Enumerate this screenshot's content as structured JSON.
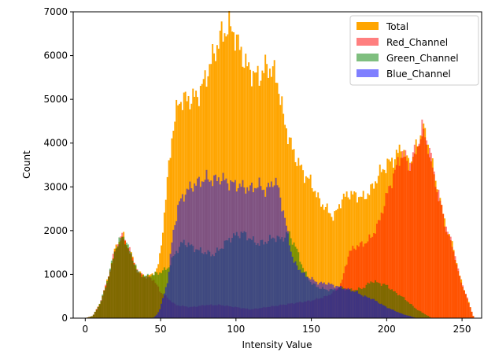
{
  "chart_data": {
    "type": "bar",
    "title": "",
    "xlabel": "Intensity Value",
    "ylabel": "Count",
    "xlim": [
      -8,
      263
    ],
    "ylim": [
      0,
      7000
    ],
    "x_ticks": [
      0,
      50,
      100,
      150,
      200,
      250
    ],
    "y_ticks": [
      0,
      1000,
      2000,
      3000,
      4000,
      5000,
      6000,
      7000
    ],
    "grid": false,
    "legend_position": "top-right",
    "bin_width": 1,
    "series": [
      {
        "name": "Total",
        "color": "#ffa500",
        "opacity": 1.0,
        "points": [
          [
            0,
            0
          ],
          [
            5,
            50
          ],
          [
            10,
            350
          ],
          [
            15,
            900
          ],
          [
            20,
            1600
          ],
          [
            25,
            1900
          ],
          [
            30,
            1500
          ],
          [
            35,
            1050
          ],
          [
            40,
            950
          ],
          [
            45,
            1000
          ],
          [
            48,
            1150
          ],
          [
            50,
            1500
          ],
          [
            55,
            3300
          ],
          [
            58,
            4300
          ],
          [
            62,
            4950
          ],
          [
            65,
            5000
          ],
          [
            70,
            5000
          ],
          [
            75,
            5100
          ],
          [
            80,
            5500
          ],
          [
            85,
            6000
          ],
          [
            90,
            6450
          ],
          [
            95,
            6650
          ],
          [
            98,
            6600
          ],
          [
            102,
            6200
          ],
          [
            108,
            5700
          ],
          [
            115,
            5500
          ],
          [
            120,
            5750
          ],
          [
            125,
            5650
          ],
          [
            128,
            5350
          ],
          [
            132,
            4500
          ],
          [
            138,
            3800
          ],
          [
            145,
            3300
          ],
          [
            150,
            3100
          ],
          [
            155,
            2700
          ],
          [
            160,
            2500
          ],
          [
            165,
            2300
          ],
          [
            170,
            2700
          ],
          [
            175,
            2850
          ],
          [
            180,
            2800
          ],
          [
            185,
            2750
          ],
          [
            190,
            2950
          ],
          [
            195,
            3300
          ],
          [
            200,
            3500
          ],
          [
            205,
            3650
          ],
          [
            210,
            3900
          ],
          [
            215,
            3500
          ],
          [
            220,
            3900
          ],
          [
            224,
            4350
          ],
          [
            228,
            3900
          ],
          [
            232,
            3200
          ],
          [
            236,
            2600
          ],
          [
            240,
            2000
          ],
          [
            244,
            1650
          ],
          [
            248,
            1000
          ],
          [
            252,
            600
          ],
          [
            255,
            300
          ],
          [
            258,
            0
          ]
        ]
      },
      {
        "name": "Red_Channel",
        "color": "#ff0000",
        "opacity": 0.5,
        "points": [
          [
            0,
            0
          ],
          [
            5,
            50
          ],
          [
            10,
            350
          ],
          [
            15,
            900
          ],
          [
            20,
            1600
          ],
          [
            25,
            1900
          ],
          [
            30,
            1500
          ],
          [
            35,
            1050
          ],
          [
            40,
            950
          ],
          [
            45,
            900
          ],
          [
            50,
            600
          ],
          [
            55,
            450
          ],
          [
            60,
            300
          ],
          [
            70,
            250
          ],
          [
            80,
            300
          ],
          [
            90,
            300
          ],
          [
            100,
            250
          ],
          [
            110,
            200
          ],
          [
            120,
            250
          ],
          [
            130,
            300
          ],
          [
            140,
            350
          ],
          [
            150,
            400
          ],
          [
            160,
            500
          ],
          [
            165,
            600
          ],
          [
            170,
            800
          ],
          [
            175,
            1500
          ],
          [
            180,
            1650
          ],
          [
            185,
            1700
          ],
          [
            190,
            1850
          ],
          [
            195,
            2200
          ],
          [
            200,
            2800
          ],
          [
            205,
            3300
          ],
          [
            210,
            3800
          ],
          [
            215,
            3500
          ],
          [
            220,
            3900
          ],
          [
            224,
            4350
          ],
          [
            228,
            3900
          ],
          [
            232,
            3200
          ],
          [
            236,
            2600
          ],
          [
            240,
            2000
          ],
          [
            244,
            1650
          ],
          [
            248,
            1000
          ],
          [
            252,
            600
          ],
          [
            255,
            300
          ],
          [
            258,
            0
          ]
        ]
      },
      {
        "name": "Green_Channel",
        "color": "#008000",
        "opacity": 0.5,
        "points": [
          [
            0,
            0
          ],
          [
            5,
            50
          ],
          [
            10,
            350
          ],
          [
            15,
            900
          ],
          [
            20,
            1600
          ],
          [
            25,
            1900
          ],
          [
            30,
            1500
          ],
          [
            35,
            1050
          ],
          [
            40,
            950
          ],
          [
            45,
            1000
          ],
          [
            50,
            1050
          ],
          [
            55,
            1150
          ],
          [
            60,
            1500
          ],
          [
            65,
            1750
          ],
          [
            70,
            1650
          ],
          [
            75,
            1550
          ],
          [
            80,
            1500
          ],
          [
            85,
            1450
          ],
          [
            90,
            1600
          ],
          [
            95,
            1800
          ],
          [
            100,
            1900
          ],
          [
            105,
            1950
          ],
          [
            110,
            1800
          ],
          [
            115,
            1700
          ],
          [
            120,
            1750
          ],
          [
            125,
            1850
          ],
          [
            130,
            1800
          ],
          [
            135,
            1950
          ],
          [
            140,
            1600
          ],
          [
            145,
            1100
          ],
          [
            150,
            800
          ],
          [
            155,
            700
          ],
          [
            160,
            650
          ],
          [
            165,
            650
          ],
          [
            170,
            700
          ],
          [
            175,
            650
          ],
          [
            180,
            650
          ],
          [
            185,
            700
          ],
          [
            190,
            850
          ],
          [
            195,
            800
          ],
          [
            200,
            750
          ],
          [
            205,
            600
          ],
          [
            210,
            500
          ],
          [
            215,
            350
          ],
          [
            220,
            200
          ],
          [
            225,
            100
          ],
          [
            230,
            0
          ]
        ]
      },
      {
        "name": "Blue_Channel",
        "color": "#0000ff",
        "opacity": 0.5,
        "points": [
          [
            45,
            0
          ],
          [
            48,
            100
          ],
          [
            50,
            250
          ],
          [
            55,
            900
          ],
          [
            58,
            1900
          ],
          [
            62,
            2600
          ],
          [
            65,
            2800
          ],
          [
            70,
            3000
          ],
          [
            75,
            3100
          ],
          [
            80,
            3200
          ],
          [
            85,
            3150
          ],
          [
            90,
            3200
          ],
          [
            95,
            3100
          ],
          [
            100,
            3050
          ],
          [
            105,
            3000
          ],
          [
            110,
            2950
          ],
          [
            115,
            3050
          ],
          [
            120,
            2900
          ],
          [
            125,
            3150
          ],
          [
            128,
            3000
          ],
          [
            132,
            2350
          ],
          [
            138,
            1300
          ],
          [
            145,
            1000
          ],
          [
            150,
            900
          ],
          [
            155,
            800
          ],
          [
            160,
            800
          ],
          [
            165,
            750
          ],
          [
            170,
            700
          ],
          [
            175,
            650
          ],
          [
            180,
            600
          ],
          [
            185,
            500
          ],
          [
            190,
            450
          ],
          [
            195,
            350
          ],
          [
            200,
            250
          ],
          [
            210,
            100
          ],
          [
            220,
            0
          ]
        ]
      }
    ]
  }
}
